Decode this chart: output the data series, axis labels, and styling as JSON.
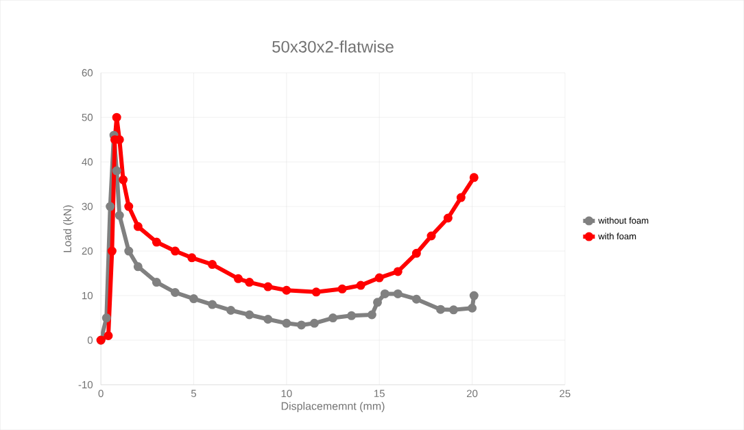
{
  "chart_data": {
    "type": "line",
    "title": "50x30x2-flatwise",
    "xlabel": "Displacememnt (mm)",
    "ylabel": "Load (kN)",
    "xlim": [
      0,
      25
    ],
    "xticks": [
      0,
      5,
      10,
      15,
      20,
      25
    ],
    "ylim": [
      -10,
      60
    ],
    "yticks": [
      -10,
      0,
      10,
      20,
      30,
      40,
      50,
      60
    ],
    "grid": true,
    "legend": "right",
    "marker": "circle",
    "line_style": "solid",
    "series": [
      {
        "name": "without foam",
        "color": "#808080",
        "x": [
          0,
          0.3,
          0.5,
          0.7,
          0.85,
          1.0,
          1.5,
          2,
          3,
          4,
          5,
          6,
          7,
          8,
          9,
          10,
          10.8,
          11.5,
          12.5,
          13.5,
          14.6,
          14.9,
          15.3,
          16,
          17,
          18.3,
          19,
          20,
          20.1
        ],
        "values": [
          0,
          5,
          30,
          46,
          38,
          28,
          20,
          16.5,
          13,
          10.7,
          9.3,
          8,
          6.7,
          5.7,
          4.7,
          3.8,
          3.4,
          3.8,
          5,
          5.5,
          5.7,
          8.5,
          10.4,
          10.4,
          9.2,
          6.9,
          6.8,
          7.2,
          10
        ]
      },
      {
        "name": "with foam",
        "color": "#ff0000",
        "x": [
          0,
          0.4,
          0.6,
          0.75,
          0.85,
          1.0,
          1.2,
          1.5,
          2,
          3,
          4,
          4.9,
          6,
          7.4,
          8,
          9,
          10,
          11.6,
          13,
          14,
          15,
          16,
          17,
          17.8,
          18.7,
          19.4,
          20.1
        ],
        "values": [
          0,
          1,
          20,
          45,
          50,
          45,
          36,
          30,
          25.5,
          22,
          20,
          18.5,
          17,
          13.8,
          13,
          12,
          11.2,
          10.8,
          11.5,
          12.3,
          14,
          15.4,
          19.5,
          23.4,
          27.4,
          32,
          36.5
        ]
      }
    ]
  }
}
